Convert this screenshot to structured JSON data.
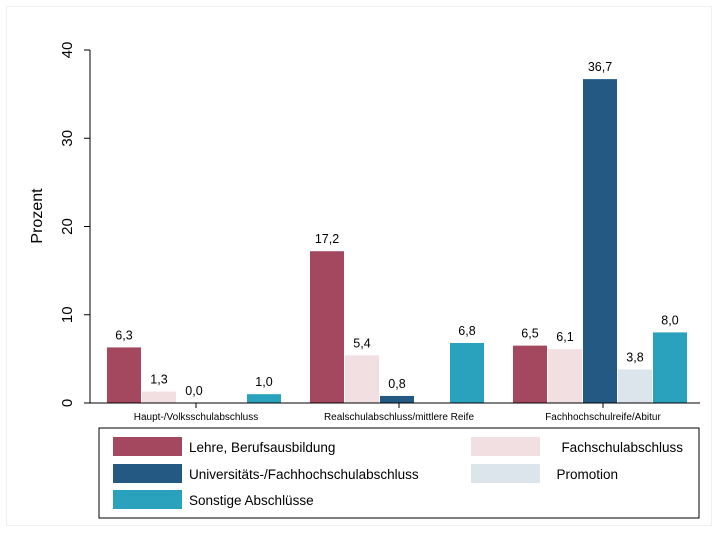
{
  "chart_data": {
    "type": "bar",
    "ylabel": "Prozent",
    "xlabel": "",
    "title": "",
    "ylim": [
      0,
      40
    ],
    "yticks": [
      0,
      10,
      20,
      30,
      40
    ],
    "grid": false,
    "legend_position": "bottom",
    "categories": [
      "Haupt-/Volksschulabschluss",
      "Realschulabschluss/mittlere Reife",
      "Fachhochschulreife/Abitur"
    ],
    "series": [
      {
        "name": "Lehre, Berufsausbildung",
        "color": "#a3485f",
        "values": [
          6.3,
          17.2,
          6.5
        ],
        "labels": [
          "6,3",
          "17,2",
          "6,5"
        ]
      },
      {
        "name": "Fachschulabschluss",
        "color": "#f2dfe2",
        "values": [
          1.3,
          5.4,
          6.1
        ],
        "labels": [
          "1,3",
          "5,4",
          "6,1"
        ]
      },
      {
        "name": "Universitäts-/Fachhochschulabschluss",
        "color": "#245984",
        "values": [
          0.0,
          0.8,
          36.7
        ],
        "labels": [
          "0,0",
          "0,8",
          "36,7"
        ]
      },
      {
        "name": "Promotion",
        "color": "#dde5ec",
        "values": [
          null,
          null,
          3.8
        ],
        "labels": [
          "",
          "",
          "3,8"
        ]
      },
      {
        "name": "Sonstige Abschlüsse",
        "color": "#2aa2bd",
        "values": [
          1.0,
          6.8,
          8.0
        ],
        "labels": [
          "1,0",
          "6,8",
          "8,0"
        ]
      }
    ]
  }
}
